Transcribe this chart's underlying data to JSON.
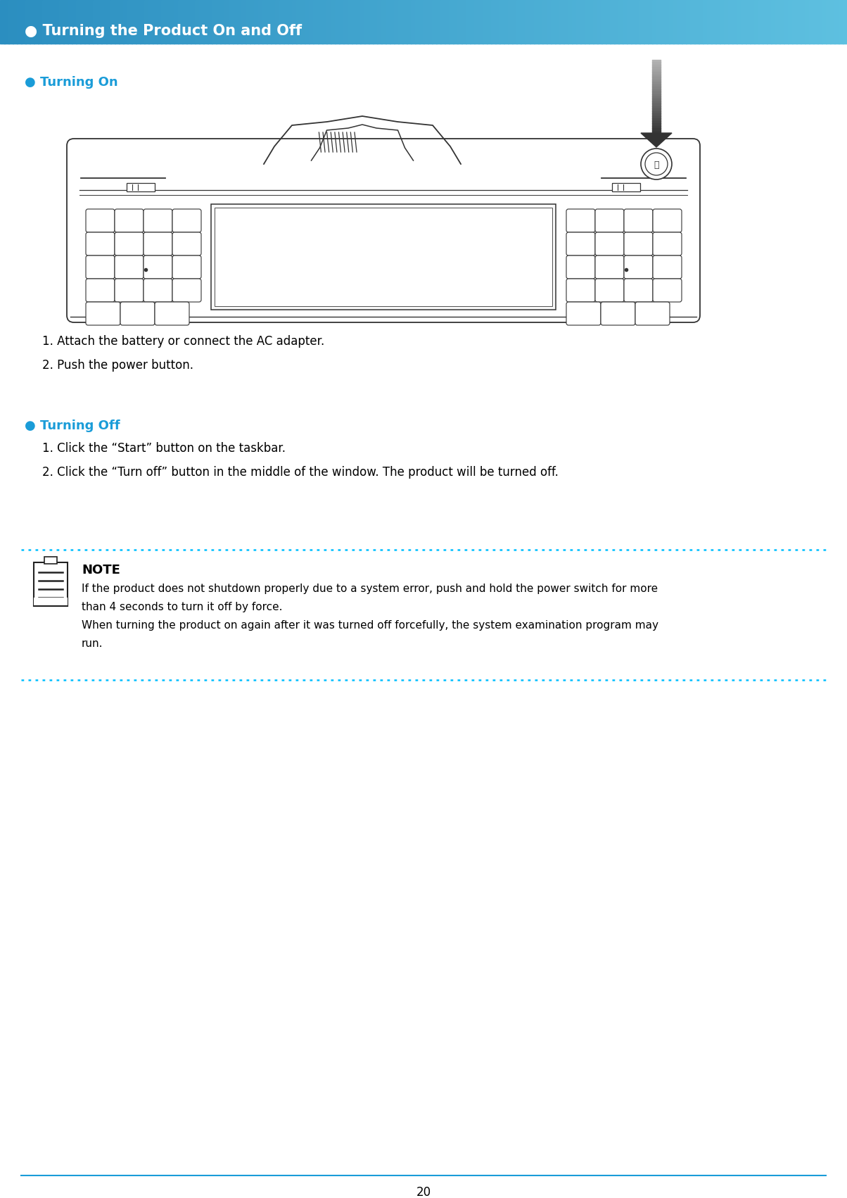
{
  "header_text": "Turning the Product On and Off",
  "header_bg_color_left": "#2B8EC0",
  "header_bg_color_right": "#5EC0E0",
  "header_text_color": "#FFFFFF",
  "section1_title": "Turning On",
  "section2_title": "Turning Off",
  "section_title_color": "#1A9CD8",
  "section1_steps": [
    "1. Attach the battery or connect the AC adapter.",
    "2. Push the power button."
  ],
  "section2_steps": [
    "1. Click the “Start” button on the taskbar.",
    "2. Click the “Turn off” button in the middle of the window. The product will be turned off."
  ],
  "note_title": "NOTE",
  "note_line1": "If the product does not shutdown properly due to a system error, push and hold the power switch for more",
  "note_line2": "than 4 seconds to turn it off by force.",
  "note_line3": "When turning the product on again after it was turned off forcefully, the system examination program may",
  "note_line4": "run.",
  "note_border_color": "#00BFFF",
  "page_number": "20",
  "bg_color": "#FFFFFF",
  "body_text_color": "#000000",
  "device_color": "#333333",
  "arrow_color_top": "#AAAAAA",
  "arrow_color_bottom": "#333333"
}
